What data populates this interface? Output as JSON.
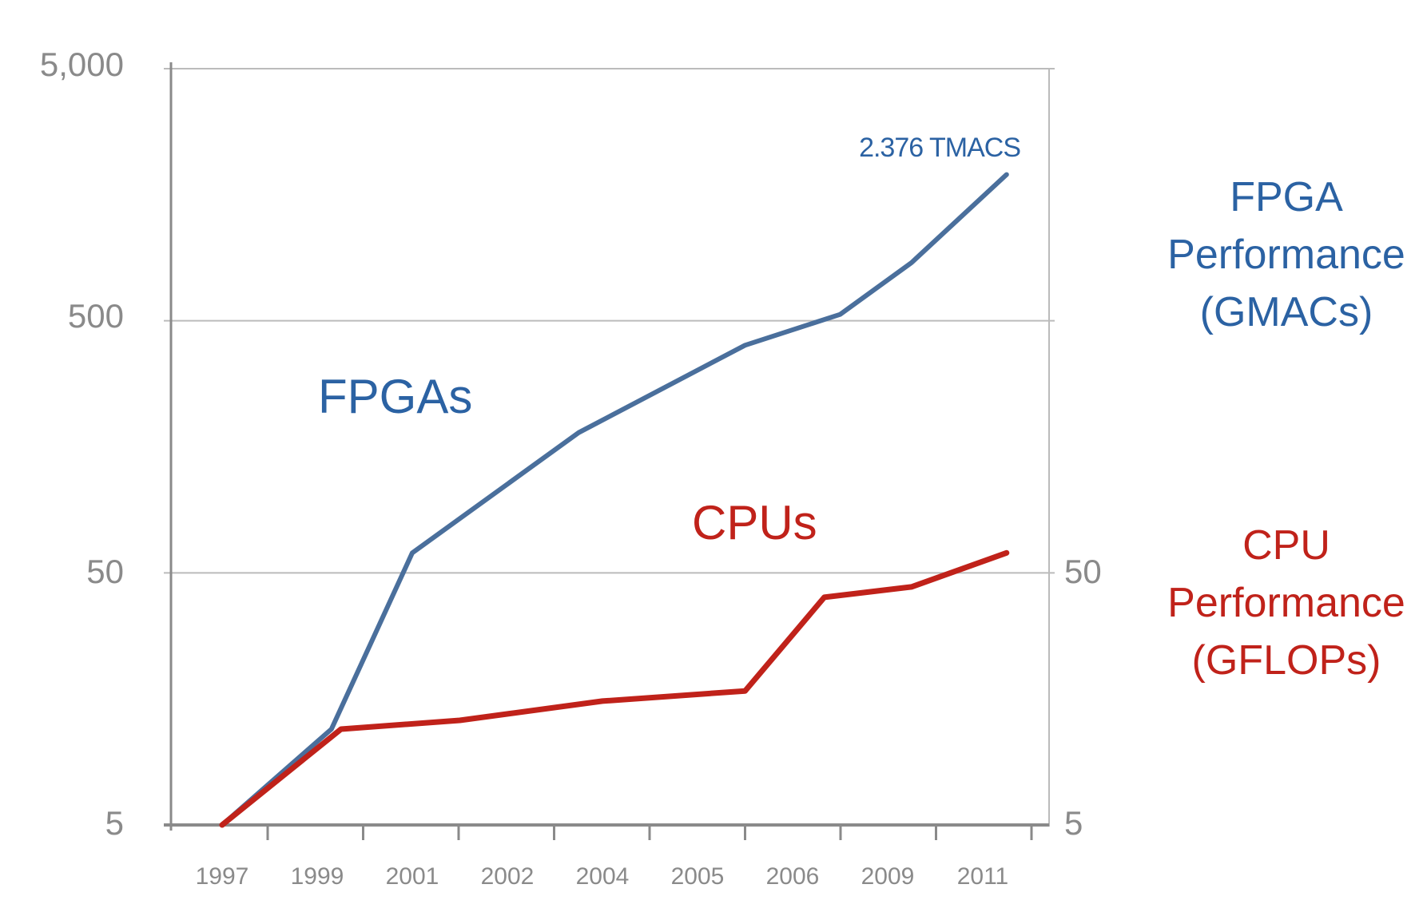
{
  "chart_data": {
    "type": "line",
    "x": [
      "1997",
      "1999",
      "2001",
      "2002",
      "2004",
      "2005",
      "2006",
      "2009",
      "2011"
    ],
    "y_scale": "log",
    "ylim": [
      5,
      5000
    ],
    "y_ticks_left": [
      "5",
      "50",
      "500",
      "5,000"
    ],
    "y_ticks_right": [
      "5",
      "50"
    ],
    "grid": "horizontal",
    "series": [
      {
        "name": "FPGAs",
        "color": "#4a6f9c",
        "points": [
          [
            1997,
            5
          ],
          [
            1999.3,
            12
          ],
          [
            2001,
            60
          ],
          [
            2003.5,
            180
          ],
          [
            2005.5,
            400
          ],
          [
            2007.5,
            530
          ],
          [
            2009.5,
            850
          ],
          [
            2011.5,
            1900
          ]
        ]
      },
      {
        "name": "CPUs",
        "color": "#c0221a",
        "points": [
          [
            1997,
            5
          ],
          [
            1999.5,
            12
          ],
          [
            2001.5,
            13
          ],
          [
            2004,
            15.5
          ],
          [
            2005.5,
            17
          ],
          [
            2007,
            40
          ],
          [
            2009.5,
            44
          ],
          [
            2011.5,
            60
          ]
        ]
      }
    ],
    "annotation": "2.376 TMACS",
    "left_axis_title": [
      "FPGA",
      "Performance",
      "(GMACs)"
    ],
    "right_axis_title": [
      "CPU",
      "Performance",
      "(GFLOPs)"
    ]
  },
  "colors": {
    "fpga": "#4a6f9c",
    "cpu": "#c0221a",
    "axis": "#8a8a8a",
    "grid": "#bbbbbb"
  }
}
